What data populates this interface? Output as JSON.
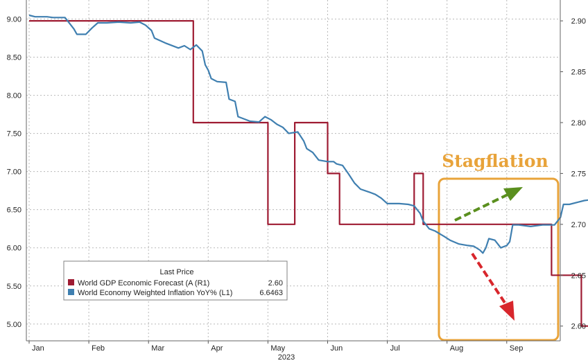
{
  "chart_data": {
    "type": "line",
    "x_label": "2023",
    "months": [
      "Jan",
      "Feb",
      "Mar",
      "Apr",
      "May",
      "Jun",
      "Jul",
      "Aug",
      "Sep"
    ],
    "y_left": {
      "ticks": [
        "5.00",
        "5.50",
        "6.00",
        "6.50",
        "7.00",
        "7.50",
        "8.00",
        "8.50",
        "9.00"
      ],
      "range": [
        4.78,
        9.25
      ]
    },
    "y_right": {
      "ticks": [
        "2.60",
        "2.65",
        "2.70",
        "2.75",
        "2.80",
        "2.85",
        "2.90"
      ],
      "range": [
        2.5855,
        2.9205
      ]
    },
    "legend": {
      "header": "Last Price",
      "entries": [
        {
          "label": "World GDP Economic Forecast (A (R1)",
          "last": "2.60",
          "color": "#9e1b32"
        },
        {
          "label": "World Economy Weighted Inflation YoY% (L1)",
          "last": "6.6463",
          "color": "#3f7fb0"
        }
      ]
    },
    "annotation": {
      "text": "Stagflation",
      "color": "#e8a33a"
    },
    "series": [
      {
        "axis": "right",
        "color": "#9e1b32",
        "points": [
          [
            1.0,
            2.9
          ],
          [
            3.75,
            2.9
          ],
          [
            3.75,
            2.8
          ],
          [
            5.0,
            2.8
          ],
          [
            5.0,
            2.7
          ],
          [
            5.45,
            2.7
          ],
          [
            5.45,
            2.8
          ],
          [
            6.0,
            2.8
          ],
          [
            6.0,
            2.75
          ],
          [
            6.2,
            2.75
          ],
          [
            6.2,
            2.7
          ],
          [
            7.45,
            2.7
          ],
          [
            7.45,
            2.75
          ],
          [
            7.6,
            2.75
          ],
          [
            7.6,
            2.7
          ],
          [
            9.75,
            2.7
          ],
          [
            9.75,
            2.65
          ],
          [
            10.25,
            2.65
          ],
          [
            10.25,
            2.6
          ],
          [
            10.8,
            2.6
          ]
        ]
      },
      {
        "axis": "left",
        "color": "#3f7fb0",
        "points": [
          [
            1.0,
            9.05
          ],
          [
            1.1,
            9.03
          ],
          [
            1.3,
            9.03
          ],
          [
            1.4,
            9.02
          ],
          [
            1.6,
            9.02
          ],
          [
            1.75,
            8.87
          ],
          [
            1.8,
            8.8
          ],
          [
            1.95,
            8.8
          ],
          [
            2.05,
            8.88
          ],
          [
            2.15,
            8.95
          ],
          [
            2.3,
            8.95
          ],
          [
            2.5,
            8.96
          ],
          [
            2.7,
            8.95
          ],
          [
            2.85,
            8.96
          ],
          [
            2.95,
            8.92
          ],
          [
            3.05,
            8.85
          ],
          [
            3.1,
            8.75
          ],
          [
            3.3,
            8.68
          ],
          [
            3.5,
            8.62
          ],
          [
            3.6,
            8.65
          ],
          [
            3.7,
            8.6
          ],
          [
            3.8,
            8.66
          ],
          [
            3.9,
            8.58
          ],
          [
            3.95,
            8.4
          ],
          [
            4.0,
            8.33
          ],
          [
            4.05,
            8.22
          ],
          [
            4.15,
            8.18
          ],
          [
            4.3,
            8.17
          ],
          [
            4.35,
            7.95
          ],
          [
            4.45,
            7.92
          ],
          [
            4.5,
            7.72
          ],
          [
            4.7,
            7.66
          ],
          [
            4.85,
            7.65
          ],
          [
            4.95,
            7.72
          ],
          [
            5.05,
            7.68
          ],
          [
            5.15,
            7.62
          ],
          [
            5.25,
            7.58
          ],
          [
            5.35,
            7.5
          ],
          [
            5.5,
            7.52
          ],
          [
            5.6,
            7.4
          ],
          [
            5.65,
            7.3
          ],
          [
            5.75,
            7.25
          ],
          [
            5.85,
            7.15
          ],
          [
            6.0,
            7.13
          ],
          [
            6.1,
            7.13
          ],
          [
            6.15,
            7.1
          ],
          [
            6.25,
            7.08
          ],
          [
            6.35,
            6.97
          ],
          [
            6.45,
            6.85
          ],
          [
            6.55,
            6.77
          ],
          [
            6.7,
            6.73
          ],
          [
            6.8,
            6.7
          ],
          [
            6.9,
            6.65
          ],
          [
            7.0,
            6.58
          ],
          [
            7.2,
            6.58
          ],
          [
            7.35,
            6.57
          ],
          [
            7.45,
            6.55
          ],
          [
            7.55,
            6.45
          ],
          [
            7.6,
            6.35
          ],
          [
            7.7,
            6.25
          ],
          [
            7.8,
            6.22
          ],
          [
            7.95,
            6.15
          ],
          [
            8.05,
            6.1
          ],
          [
            8.2,
            6.05
          ],
          [
            8.35,
            6.03
          ],
          [
            8.45,
            6.02
          ],
          [
            8.55,
            5.97
          ],
          [
            8.6,
            5.93
          ],
          [
            8.65,
            6.0
          ],
          [
            8.7,
            6.12
          ],
          [
            8.8,
            6.1
          ],
          [
            8.9,
            6.0
          ],
          [
            9.0,
            6.03
          ],
          [
            9.05,
            6.08
          ],
          [
            9.1,
            6.3
          ],
          [
            9.2,
            6.3
          ],
          [
            9.4,
            6.28
          ],
          [
            9.6,
            6.3
          ],
          [
            9.8,
            6.3
          ],
          [
            9.9,
            6.4
          ],
          [
            9.95,
            6.57
          ],
          [
            10.05,
            6.57
          ],
          [
            10.2,
            6.6
          ],
          [
            10.3,
            6.62
          ],
          [
            10.4,
            6.63
          ],
          [
            10.55,
            6.64
          ],
          [
            10.65,
            6.65
          ],
          [
            10.8,
            6.65
          ]
        ]
      }
    ]
  }
}
